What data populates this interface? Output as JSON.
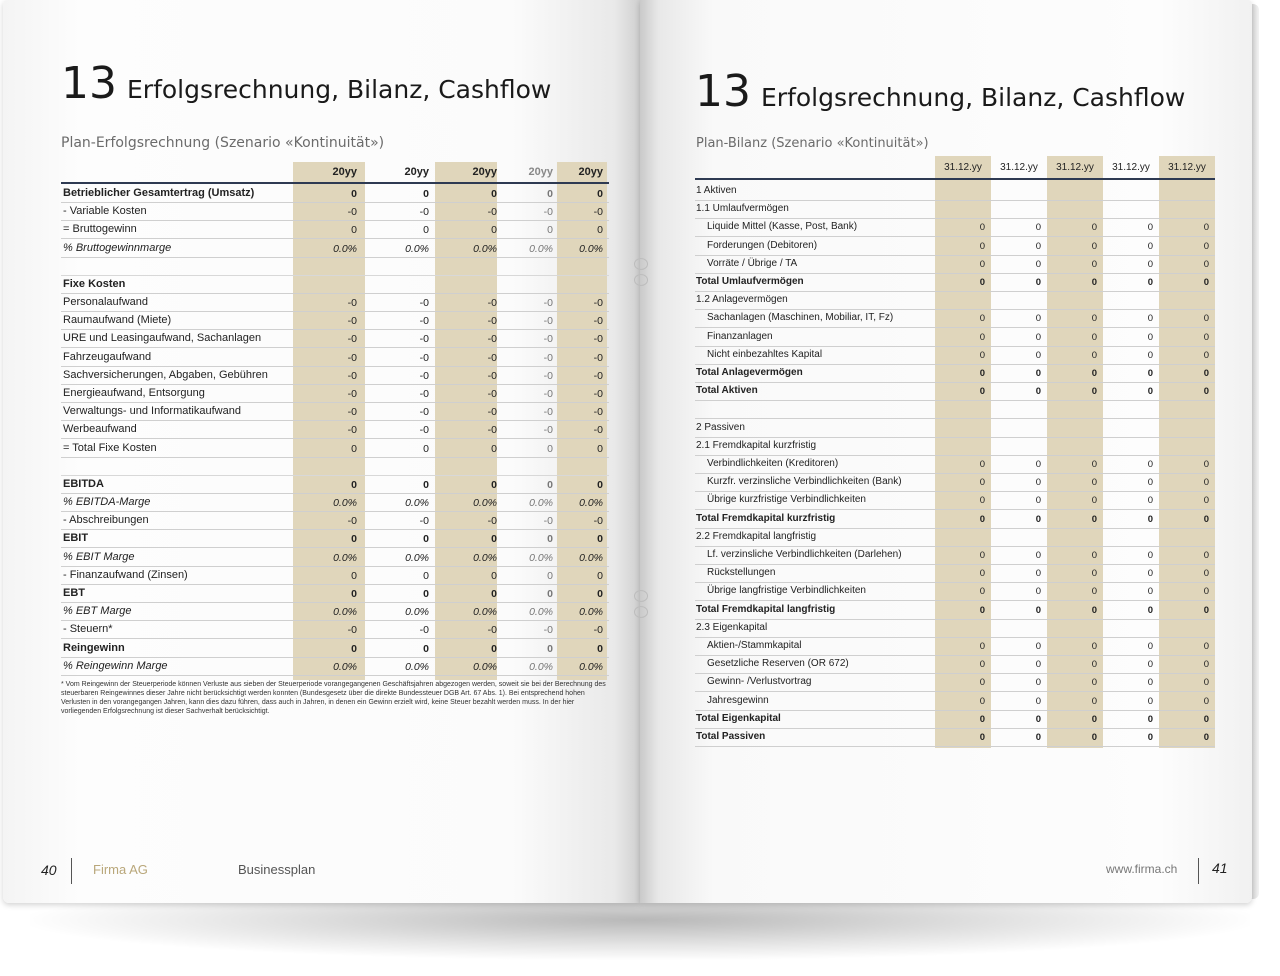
{
  "left_page": {
    "chapter_number": "13",
    "chapter_title": "Erfolgsrechnung, Bilanz, Cashflow",
    "subtitle": "Plan-Erfolgsrechnung (Szenario «Kontinuität»)",
    "columns": [
      "20yy",
      "20yy",
      "20yy",
      "20yy",
      "20yy"
    ],
    "rows": [
      {
        "label": "Betrieblicher Gesamtertrag (Umsatz)",
        "style": "bold",
        "values": [
          "0",
          "0",
          "0",
          "0",
          "0"
        ]
      },
      {
        "label": "- Variable Kosten",
        "style": "",
        "values": [
          "-0",
          "-0",
          "-0",
          "-0",
          "-0"
        ]
      },
      {
        "label": "= Bruttogewinn",
        "style": "",
        "values": [
          "0",
          "0",
          "0",
          "0",
          "0"
        ]
      },
      {
        "label": "% Bruttogewinnmarge",
        "style": "italic",
        "values": [
          "0.0%",
          "0.0%",
          "0.0%",
          "0.0%",
          "0.0%"
        ]
      },
      {
        "label": "",
        "style": "blank",
        "values": [
          "",
          "",
          "",
          "",
          ""
        ]
      },
      {
        "label": "Fixe Kosten",
        "style": "bold",
        "values": [
          "",
          "",
          "",
          "",
          ""
        ]
      },
      {
        "label": "Personalaufwand",
        "style": "",
        "values": [
          "-0",
          "-0",
          "-0",
          "-0",
          "-0"
        ]
      },
      {
        "label": "Raumaufwand (Miete)",
        "style": "",
        "values": [
          "-0",
          "-0",
          "-0",
          "-0",
          "-0"
        ]
      },
      {
        "label": "URE und Leasingaufwand, Sachanlagen",
        "style": "",
        "values": [
          "-0",
          "-0",
          "-0",
          "-0",
          "-0"
        ]
      },
      {
        "label": "Fahrzeugaufwand",
        "style": "",
        "values": [
          "-0",
          "-0",
          "-0",
          "-0",
          "-0"
        ]
      },
      {
        "label": "Sachversicherungen, Abgaben, Gebühren",
        "style": "",
        "values": [
          "-0",
          "-0",
          "-0",
          "-0",
          "-0"
        ]
      },
      {
        "label": "Energieaufwand, Entsorgung",
        "style": "",
        "values": [
          "-0",
          "-0",
          "-0",
          "-0",
          "-0"
        ]
      },
      {
        "label": "Verwaltungs- und Informatikaufwand",
        "style": "",
        "values": [
          "-0",
          "-0",
          "-0",
          "-0",
          "-0"
        ]
      },
      {
        "label": "Werbeaufwand",
        "style": "",
        "values": [
          "-0",
          "-0",
          "-0",
          "-0",
          "-0"
        ]
      },
      {
        "label": "= Total Fixe Kosten",
        "style": "",
        "values": [
          "0",
          "0",
          "0",
          "0",
          "0"
        ]
      },
      {
        "label": "",
        "style": "blank",
        "values": [
          "",
          "",
          "",
          "",
          ""
        ]
      },
      {
        "label": "EBITDA",
        "style": "bold",
        "values": [
          "0",
          "0",
          "0",
          "0",
          "0"
        ]
      },
      {
        "label": "% EBITDA-Marge",
        "style": "italic",
        "values": [
          "0.0%",
          "0.0%",
          "0.0%",
          "0.0%",
          "0.0%"
        ]
      },
      {
        "label": "- Abschreibungen",
        "style": "",
        "values": [
          "-0",
          "-0",
          "-0",
          "-0",
          "-0"
        ]
      },
      {
        "label": "EBIT",
        "style": "bold",
        "values": [
          "0",
          "0",
          "0",
          "0",
          "0"
        ]
      },
      {
        "label": "% EBIT Marge",
        "style": "italic",
        "values": [
          "0.0%",
          "0.0%",
          "0.0%",
          "0.0%",
          "0.0%"
        ]
      },
      {
        "label": "- Finanzaufwand (Zinsen)",
        "style": "",
        "values": [
          "0",
          "0",
          "0",
          "0",
          "0"
        ]
      },
      {
        "label": "EBT",
        "style": "bold",
        "values": [
          "0",
          "0",
          "0",
          "0",
          "0"
        ]
      },
      {
        "label": "% EBT Marge",
        "style": "italic",
        "values": [
          "0.0%",
          "0.0%",
          "0.0%",
          "0.0%",
          "0.0%"
        ]
      },
      {
        "label": "- Steuern*",
        "style": "",
        "values": [
          "-0",
          "-0",
          "-0",
          "-0",
          "-0"
        ]
      },
      {
        "label": "Reingewinn",
        "style": "bold",
        "values": [
          "0",
          "0",
          "0",
          "0",
          "0"
        ]
      },
      {
        "label": "% Reingewinn Marge",
        "style": "italic",
        "values": [
          "0.0%",
          "0.0%",
          "0.0%",
          "0.0%",
          "0.0%"
        ]
      }
    ],
    "footnote": "* Vom Reingewinn der Steuerperiode können Verluste aus sieben der Steuerperiode vorangegangenen Geschäftsjahren abgezogen werden, soweit sie bei der Berechnung des steuerbaren Reingewinnes dieser Jahre nicht berücksichtigt werden konnten (Bundesgesetz über die direkte Bundessteuer DGB Art. 67 Abs. 1). Bei entsprechend hohen Verlusten in den vorangegangen Jahren, kann dies dazu führen, dass auch in Jahren, in denen ein Gewinn erzielt wird, keine Steuer bezahlt werden muss. In der hier vorliegenden Erfolgsrechnung ist dieser Sachverhalt berücksichtigt.",
    "page_number": "40",
    "company": "Firma AG",
    "document": "Businessplan"
  },
  "right_page": {
    "chapter_number": "13",
    "chapter_title": "Erfolgsrechnung, Bilanz, Cashflow",
    "subtitle": "Plan-Bilanz (Szenario «Kontinuität»)",
    "columns": [
      "31.12.yy",
      "31.12.yy",
      "31.12.yy",
      "31.12.yy",
      "31.12.yy"
    ],
    "rows": [
      {
        "label": "1 Aktiven",
        "indent": 0,
        "style": "",
        "values": [
          "",
          "",
          "",
          "",
          ""
        ]
      },
      {
        "label": "1.1 Umlaufvermögen",
        "indent": 0,
        "style": "",
        "values": [
          "",
          "",
          "",
          "",
          ""
        ]
      },
      {
        "label": "Liquide Mittel (Kasse, Post, Bank)",
        "indent": 1,
        "style": "",
        "values": [
          "0",
          "0",
          "0",
          "0",
          "0"
        ]
      },
      {
        "label": "Forderungen (Debitoren)",
        "indent": 1,
        "style": "",
        "values": [
          "0",
          "0",
          "0",
          "0",
          "0"
        ]
      },
      {
        "label": "Vorräte / Übrige / TA",
        "indent": 1,
        "style": "",
        "values": [
          "0",
          "0",
          "0",
          "0",
          "0"
        ]
      },
      {
        "label": "Total Umlaufvermögen",
        "indent": 0,
        "style": "bold",
        "values": [
          "0",
          "0",
          "0",
          "0",
          "0"
        ]
      },
      {
        "label": "1.2 Anlagevermögen",
        "indent": 0,
        "style": "",
        "values": [
          "",
          "",
          "",
          "",
          ""
        ]
      },
      {
        "label": "Sachanlagen (Maschinen, Mobiliar, IT, Fz)",
        "indent": 1,
        "style": "",
        "values": [
          "0",
          "0",
          "0",
          "0",
          "0"
        ]
      },
      {
        "label": "Finanzanlagen",
        "indent": 1,
        "style": "",
        "values": [
          "0",
          "0",
          "0",
          "0",
          "0"
        ]
      },
      {
        "label": "Nicht einbezahltes Kapital",
        "indent": 1,
        "style": "",
        "values": [
          "0",
          "0",
          "0",
          "0",
          "0"
        ]
      },
      {
        "label": "Total Anlagevermögen",
        "indent": 0,
        "style": "bold",
        "values": [
          "0",
          "0",
          "0",
          "0",
          "0"
        ]
      },
      {
        "label": "Total Aktiven",
        "indent": 0,
        "style": "bold",
        "values": [
          "0",
          "0",
          "0",
          "0",
          "0"
        ]
      },
      {
        "label": "",
        "indent": 0,
        "style": "",
        "values": [
          "",
          "",
          "",
          "",
          ""
        ]
      },
      {
        "label": "2 Passiven",
        "indent": 0,
        "style": "",
        "values": [
          "",
          "",
          "",
          "",
          ""
        ]
      },
      {
        "label": "2.1 Fremdkapital kurzfristig",
        "indent": 0,
        "style": "",
        "values": [
          "",
          "",
          "",
          "",
          ""
        ]
      },
      {
        "label": "Verbindlichkeiten (Kreditoren)",
        "indent": 1,
        "style": "",
        "values": [
          "0",
          "0",
          "0",
          "0",
          "0"
        ]
      },
      {
        "label": "Kurzfr. verzinsliche Verbindlichkeiten (Bank)",
        "indent": 1,
        "style": "",
        "values": [
          "0",
          "0",
          "0",
          "0",
          "0"
        ]
      },
      {
        "label": "Übrige kurzfristige Verbindlichkeiten",
        "indent": 1,
        "style": "",
        "values": [
          "0",
          "0",
          "0",
          "0",
          "0"
        ]
      },
      {
        "label": "Total Fremdkapital kurzfristig",
        "indent": 0,
        "style": "bold",
        "values": [
          "0",
          "0",
          "0",
          "0",
          "0"
        ]
      },
      {
        "label": "2.2 Fremdkapital langfristig",
        "indent": 0,
        "style": "",
        "values": [
          "",
          "",
          "",
          "",
          ""
        ]
      },
      {
        "label": "Lf. verzinsliche Verbindlichkeiten (Darlehen)",
        "indent": 1,
        "style": "",
        "values": [
          "0",
          "0",
          "0",
          "0",
          "0"
        ]
      },
      {
        "label": "Rückstellungen",
        "indent": 1,
        "style": "",
        "values": [
          "0",
          "0",
          "0",
          "0",
          "0"
        ]
      },
      {
        "label": "Übrige langfristige Verbindlichkeiten",
        "indent": 1,
        "style": "",
        "values": [
          "0",
          "0",
          "0",
          "0",
          "0"
        ]
      },
      {
        "label": "Total Fremdkapital langfristig",
        "indent": 0,
        "style": "bold",
        "values": [
          "0",
          "0",
          "0",
          "0",
          "0"
        ]
      },
      {
        "label": "2.3 Eigenkapital",
        "indent": 0,
        "style": "",
        "values": [
          "",
          "",
          "",
          "",
          ""
        ]
      },
      {
        "label": "Aktien-/Stammkapital",
        "indent": 1,
        "style": "",
        "values": [
          "0",
          "0",
          "0",
          "0",
          "0"
        ]
      },
      {
        "label": "Gesetzliche Reserven (OR 672)",
        "indent": 1,
        "style": "",
        "values": [
          "0",
          "0",
          "0",
          "0",
          "0"
        ]
      },
      {
        "label": "Gewinn- /Verlustvortrag",
        "indent": 1,
        "style": "",
        "values": [
          "0",
          "0",
          "0",
          "0",
          "0"
        ]
      },
      {
        "label": "Jahresgewinn",
        "indent": 1,
        "style": "",
        "values": [
          "0",
          "0",
          "0",
          "0",
          "0"
        ]
      },
      {
        "label": "Total Eigenkapital",
        "indent": 0,
        "style": "bold",
        "values": [
          "0",
          "0",
          "0",
          "0",
          "0"
        ]
      },
      {
        "label": "Total Passiven",
        "indent": 0,
        "style": "bold",
        "values": [
          "0",
          "0",
          "0",
          "0",
          "0"
        ]
      }
    ],
    "website": "www.firma.ch",
    "page_number": "41"
  },
  "colors": {
    "band": "#e0d6bb",
    "header_rule": "#2e3a52",
    "company": "#b9a77a"
  }
}
